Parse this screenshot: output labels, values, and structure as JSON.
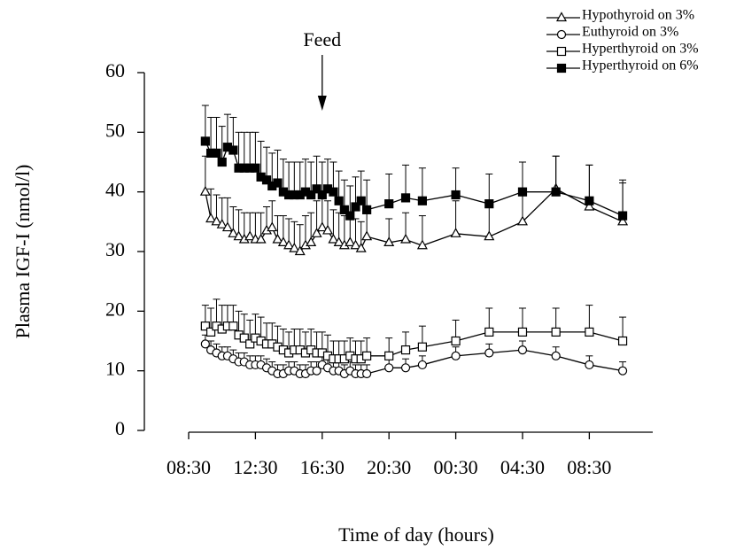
{
  "chart_data": {
    "type": "line",
    "x_label": "Time of day (hours)",
    "y_label": "Plasma IGF-I (nmol/l)",
    "annotation": {
      "text": "Feed",
      "x": 16.5
    },
    "x": [
      9.5,
      9.83,
      10.17,
      10.5,
      10.83,
      11.17,
      11.5,
      11.83,
      12.17,
      12.5,
      12.83,
      13.17,
      13.5,
      13.83,
      14.17,
      14.5,
      14.83,
      15.17,
      15.5,
      15.83,
      16.17,
      16.5,
      16.83,
      17.17,
      17.5,
      17.83,
      18.17,
      18.5,
      18.83,
      19.17,
      20.5,
      21.5,
      22.5,
      24.5,
      26.5,
      28.5,
      30.5,
      32.5,
      34.5
    ],
    "xlim": [
      8.5,
      36.3
    ],
    "xticks": [
      {
        "value": 8.5,
        "label": "08:30"
      },
      {
        "value": 12.5,
        "label": "12:30"
      },
      {
        "value": 16.5,
        "label": "16:30"
      },
      {
        "value": 20.5,
        "label": "20:30"
      },
      {
        "value": 24.5,
        "label": "00:30"
      },
      {
        "value": 28.5,
        "label": "04:30"
      },
      {
        "value": 32.5,
        "label": "08:30"
      }
    ],
    "ylim": [
      0,
      60
    ],
    "yticks": [
      0,
      10,
      20,
      30,
      40,
      50,
      60
    ],
    "series": [
      {
        "name": "Hypothyroid on 3%",
        "marker": "triangle",
        "color": "#000",
        "values": [
          40,
          35.5,
          35,
          34.5,
          34,
          33,
          32.5,
          32,
          32.5,
          32,
          32,
          33.5,
          34,
          32,
          31.5,
          31,
          30.5,
          30,
          31,
          31.5,
          33,
          34,
          33.5,
          32,
          31.5,
          31,
          31.5,
          31,
          30.5,
          32.5,
          31.5,
          32,
          31,
          33,
          32.5,
          35,
          40.5,
          37.5,
          35
        ],
        "errors": [
          6,
          5,
          4.5,
          4.5,
          5,
          4.5,
          4.5,
          4.5,
          4,
          4.5,
          4.5,
          4,
          4.5,
          4,
          4.5,
          4.5,
          4.5,
          4.5,
          5,
          5,
          5.5,
          5.5,
          5,
          5,
          5,
          5,
          4.5,
          4.5,
          4.5,
          5,
          4,
          4.5,
          5,
          5.5,
          5.5,
          5.5,
          5.5,
          7,
          7
        ]
      },
      {
        "name": "Euthyroid on 3%",
        "marker": "circle",
        "color": "#000",
        "values": [
          14.5,
          13.5,
          13,
          12.5,
          12.5,
          12,
          11.5,
          11.5,
          11,
          11,
          11,
          10.5,
          10,
          9.5,
          9.5,
          10,
          10,
          9.5,
          9.5,
          10,
          10,
          11,
          10.5,
          10,
          10,
          9.5,
          10,
          9.5,
          9.5,
          9.5,
          10.5,
          10.5,
          11,
          12.5,
          13,
          13.5,
          12.5,
          11,
          10
        ],
        "errors": [
          1.5,
          1.5,
          1.5,
          1.5,
          1.5,
          1.5,
          1.5,
          1.5,
          1.5,
          1.5,
          1.5,
          1.5,
          1.5,
          1.5,
          1.5,
          1.5,
          1.5,
          1.5,
          1.5,
          1.5,
          1.5,
          1.5,
          1.5,
          1.5,
          1.5,
          1.5,
          1.5,
          1.5,
          1.5,
          1.5,
          1.5,
          1.5,
          1.5,
          1.5,
          1.5,
          1.5,
          1.5,
          1.5,
          1.5
        ]
      },
      {
        "name": "Hyperthyroid on 3%",
        "marker": "square",
        "color": "#000",
        "values": [
          17.5,
          16.5,
          17.5,
          17,
          17.5,
          17.5,
          16,
          15.5,
          14.5,
          15.5,
          15,
          14.5,
          14.5,
          14,
          13.5,
          13,
          13.5,
          13.5,
          13,
          13.5,
          13,
          13,
          12.5,
          12,
          12,
          12,
          12.5,
          12,
          12,
          12.5,
          12.5,
          13.5,
          14,
          15,
          16.5,
          16.5,
          16.5,
          16.5,
          15
        ],
        "errors": [
          3.5,
          4,
          4.5,
          4,
          3.5,
          3.5,
          4,
          4,
          4,
          4,
          4,
          3.5,
          3.5,
          3.5,
          3.5,
          3.5,
          3.5,
          3.5,
          3.5,
          3.5,
          3.5,
          3.5,
          3.5,
          3,
          3,
          3,
          3,
          3,
          3,
          3,
          3,
          3,
          3.5,
          3.5,
          4,
          4,
          4,
          4.5,
          4
        ]
      },
      {
        "name": "Hyperthyroid on 6%",
        "marker": "filled-square",
        "color": "#000",
        "values": [
          48.5,
          46.5,
          46.5,
          45,
          47.5,
          47,
          44,
          44,
          44,
          44,
          42.5,
          42,
          41,
          41.5,
          40,
          39.5,
          39.5,
          39.5,
          40,
          39.5,
          40.5,
          39.5,
          40.5,
          40,
          38.5,
          37,
          36,
          37.5,
          38.5,
          37,
          38,
          39,
          38.5,
          39.5,
          38,
          40,
          40,
          38.5,
          36
        ],
        "errors": [
          6,
          6,
          6,
          6,
          5.5,
          5.5,
          6,
          6,
          6,
          6,
          6,
          5.5,
          5.5,
          5.5,
          5.5,
          5.5,
          5.5,
          5.5,
          5.5,
          5.5,
          5.5,
          5.5,
          5,
          5,
          5,
          5,
          5,
          5,
          5,
          5,
          5,
          5.5,
          5.5,
          4.5,
          5,
          5,
          6,
          6,
          5.5
        ]
      }
    ]
  }
}
